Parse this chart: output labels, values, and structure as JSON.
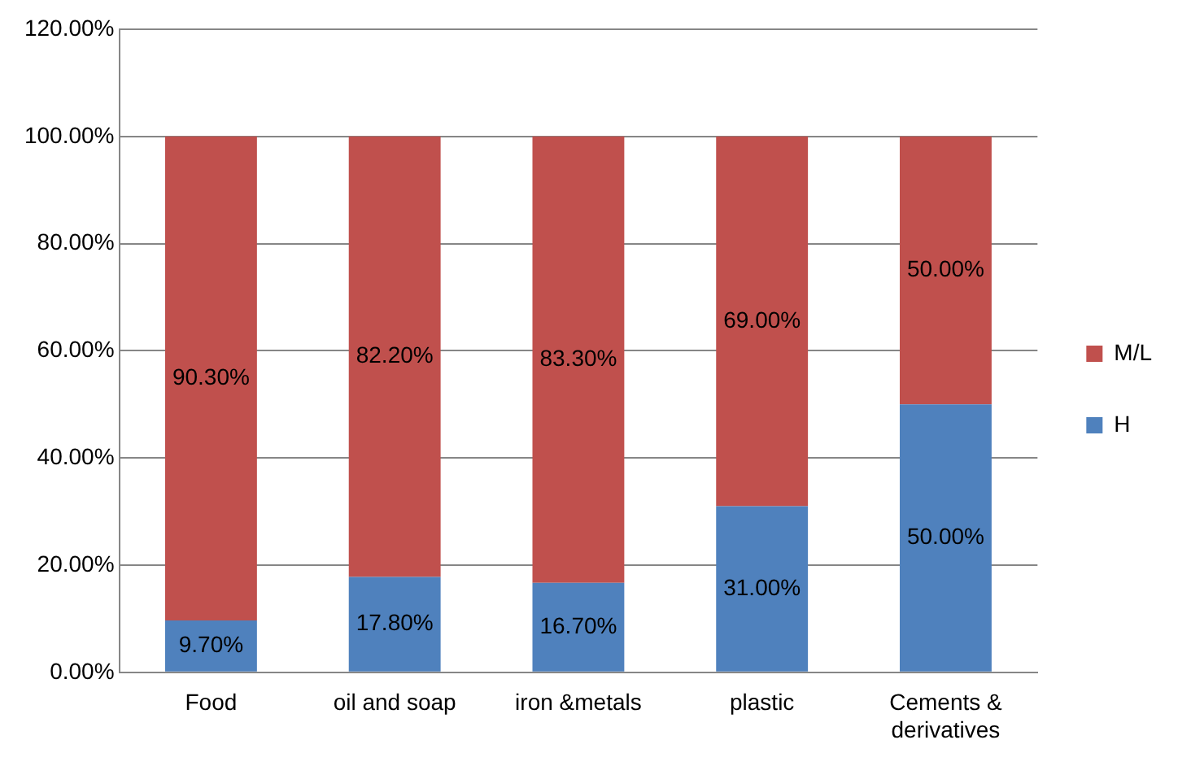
{
  "chart_data": {
    "type": "bar",
    "stacked": true,
    "categories": [
      "Food",
      "oil and soap",
      "iron &metals",
      "plastic",
      "Cements & derivatives"
    ],
    "series": [
      {
        "name": "H",
        "color": "#4f81bd",
        "values": [
          9.7,
          17.8,
          16.7,
          31,
          50
        ],
        "value_labels": [
          "9.70%",
          "17.80%",
          "16.70%",
          "31.00%",
          "50.00%"
        ]
      },
      {
        "name": "M/L",
        "color": "#c0504d",
        "values": [
          90.3,
          82.2,
          83.3,
          69,
          50
        ],
        "value_labels": [
          "90.30%",
          "82.20%",
          "83.30%",
          "69.00%",
          "50.00%"
        ]
      }
    ],
    "ylim": [
      0,
      120
    ],
    "yticks": [
      {
        "value": 0,
        "label": "0.00%"
      },
      {
        "value": 20,
        "label": "20.00%"
      },
      {
        "value": 40,
        "label": "40.00%"
      },
      {
        "value": 60,
        "label": "60.00%"
      },
      {
        "value": 80,
        "label": "80.00%"
      },
      {
        "value": 100,
        "label": "100.00%"
      },
      {
        "value": 120,
        "label": "120.00%"
      }
    ],
    "grid": "y",
    "legend": "right"
  }
}
